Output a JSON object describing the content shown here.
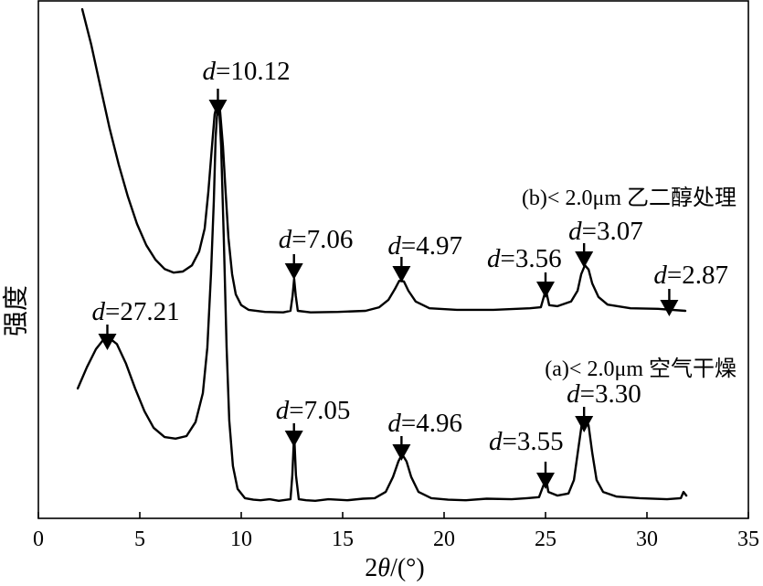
{
  "chart_data": {
    "type": "line",
    "xlabel": "2θ/(°)",
    "ylabel": "强度",
    "xlim": [
      0,
      35
    ],
    "ylim": [
      0,
      100
    ],
    "xticks": [
      0,
      5,
      10,
      15,
      20,
      25,
      30,
      35
    ],
    "xtick_labels": [
      "0",
      "5",
      "10",
      "15",
      "20",
      "25",
      "30",
      "35"
    ],
    "y_tick_labels_shown": false,
    "grid": false,
    "series": [
      {
        "name": "(b)< 2.0μm 乙二醇处理",
        "color": "#000000",
        "points": [
          [
            2.16,
            98.4
          ],
          [
            2.61,
            91.5
          ],
          [
            3.06,
            83.4
          ],
          [
            3.51,
            75.4
          ],
          [
            3.96,
            68.4
          ],
          [
            4.41,
            62.2
          ],
          [
            4.86,
            56.9
          ],
          [
            5.32,
            52.8
          ],
          [
            5.77,
            50.0
          ],
          [
            6.22,
            48.2
          ],
          [
            6.67,
            47.5
          ],
          [
            7.12,
            47.7
          ],
          [
            7.57,
            48.9
          ],
          [
            7.93,
            51.6
          ],
          [
            8.2,
            56.0
          ],
          [
            8.38,
            63.1
          ],
          [
            8.56,
            71.9
          ],
          [
            8.69,
            78.1
          ],
          [
            8.83,
            80.4
          ],
          [
            8.96,
            78.6
          ],
          [
            9.1,
            71.9
          ],
          [
            9.23,
            63.1
          ],
          [
            9.37,
            54.2
          ],
          [
            9.55,
            47.2
          ],
          [
            9.73,
            43.3
          ],
          [
            10.0,
            41.2
          ],
          [
            10.36,
            40.3
          ],
          [
            11.17,
            39.9
          ],
          [
            12.07,
            39.8
          ],
          [
            12.43,
            40.1
          ],
          [
            12.53,
            43.0
          ],
          [
            12.61,
            46.3
          ],
          [
            12.69,
            43.0
          ],
          [
            12.79,
            40.1
          ],
          [
            13.42,
            39.8
          ],
          [
            14.77,
            39.9
          ],
          [
            16.13,
            40.1
          ],
          [
            16.8,
            40.8
          ],
          [
            17.25,
            42.2
          ],
          [
            17.57,
            44.3
          ],
          [
            17.79,
            45.9
          ],
          [
            18.02,
            45.8
          ],
          [
            18.24,
            44.0
          ],
          [
            18.6,
            41.9
          ],
          [
            19.28,
            40.6
          ],
          [
            20.63,
            40.3
          ],
          [
            22.43,
            40.3
          ],
          [
            24.23,
            40.6
          ],
          [
            24.77,
            40.8
          ],
          [
            24.95,
            43.3
          ],
          [
            25.05,
            43.6
          ],
          [
            25.18,
            41.2
          ],
          [
            25.59,
            41.0
          ],
          [
            26.26,
            41.9
          ],
          [
            26.58,
            44.0
          ],
          [
            26.76,
            47.2
          ],
          [
            26.94,
            48.9
          ],
          [
            27.12,
            48.1
          ],
          [
            27.3,
            45.4
          ],
          [
            27.61,
            42.8
          ],
          [
            28.06,
            41.3
          ],
          [
            29.19,
            40.6
          ],
          [
            30.54,
            40.5
          ],
          [
            31.89,
            40.1
          ]
        ],
        "peaks": [
          {
            "label": "d=10.12",
            "x": 8.85
          },
          {
            "label": "d=7.06",
            "x": 12.6
          },
          {
            "label": "d=4.97",
            "x": 17.9
          },
          {
            "label": "d=3.56",
            "x": 25.0
          },
          {
            "label": "d=3.07",
            "x": 26.9
          },
          {
            "label": "d=2.87",
            "x": 31.1
          }
        ]
      },
      {
        "name": "(a)< 2.0μm 空气干燥",
        "color": "#000000",
        "points": [
          [
            1.94,
            25.1
          ],
          [
            2.39,
            29.2
          ],
          [
            2.84,
            32.7
          ],
          [
            3.2,
            34.5
          ],
          [
            3.51,
            34.8
          ],
          [
            3.87,
            33.7
          ],
          [
            4.32,
            29.9
          ],
          [
            4.77,
            25.1
          ],
          [
            5.23,
            20.7
          ],
          [
            5.68,
            17.5
          ],
          [
            6.22,
            15.7
          ],
          [
            6.76,
            15.4
          ],
          [
            7.3,
            15.9
          ],
          [
            7.75,
            18.6
          ],
          [
            8.11,
            24.2
          ],
          [
            8.33,
            33.0
          ],
          [
            8.51,
            47.2
          ],
          [
            8.65,
            61.3
          ],
          [
            8.74,
            73.7
          ],
          [
            8.83,
            79.3
          ],
          [
            8.92,
            78.9
          ],
          [
            9.01,
            71.9
          ],
          [
            9.14,
            54.2
          ],
          [
            9.28,
            33.0
          ],
          [
            9.41,
            18.9
          ],
          [
            9.59,
            10.1
          ],
          [
            9.82,
            5.7
          ],
          [
            10.18,
            3.9
          ],
          [
            10.6,
            3.6
          ],
          [
            10.95,
            3.5
          ],
          [
            11.4,
            3.7
          ],
          [
            11.85,
            3.4
          ],
          [
            12.43,
            3.7
          ],
          [
            12.52,
            8.3
          ],
          [
            12.61,
            16.3
          ],
          [
            12.7,
            8.3
          ],
          [
            12.84,
            3.7
          ],
          [
            13.2,
            3.5
          ],
          [
            13.65,
            3.4
          ],
          [
            14.3,
            3.7
          ],
          [
            15.23,
            3.5
          ],
          [
            16.0,
            3.8
          ],
          [
            16.58,
            3.9
          ],
          [
            17.12,
            5.1
          ],
          [
            17.48,
            8.0
          ],
          [
            17.75,
            11.0
          ],
          [
            17.93,
            12.4
          ],
          [
            18.15,
            11.0
          ],
          [
            18.38,
            8.0
          ],
          [
            18.74,
            5.1
          ],
          [
            19.37,
            3.9
          ],
          [
            20.2,
            3.6
          ],
          [
            21.08,
            3.5
          ],
          [
            22.1,
            3.8
          ],
          [
            23.33,
            3.7
          ],
          [
            24.1,
            3.9
          ],
          [
            24.68,
            4.1
          ],
          [
            24.91,
            6.5
          ],
          [
            25.0,
            8.3
          ],
          [
            25.14,
            5.1
          ],
          [
            25.59,
            4.4
          ],
          [
            26.13,
            4.8
          ],
          [
            26.4,
            7.4
          ],
          [
            26.62,
            13.6
          ],
          [
            26.8,
            18.6
          ],
          [
            26.94,
            19.6
          ],
          [
            27.12,
            18.0
          ],
          [
            27.3,
            12.7
          ],
          [
            27.52,
            7.4
          ],
          [
            27.84,
            5.1
          ],
          [
            28.51,
            4.2
          ],
          [
            29.64,
            3.9
          ],
          [
            30.99,
            3.7
          ],
          [
            31.67,
            3.9
          ],
          [
            31.8,
            5.1
          ],
          [
            31.94,
            4.4
          ]
        ],
        "peaks": [
          {
            "label": "d=27.21",
            "x": 3.4
          },
          {
            "label": "d=7.05",
            "x": 12.6
          },
          {
            "label": "d=4.96",
            "x": 17.9
          },
          {
            "label": "d=3.55",
            "x": 25.0
          },
          {
            "label": "d=3.30",
            "x": 26.9
          }
        ]
      }
    ]
  }
}
